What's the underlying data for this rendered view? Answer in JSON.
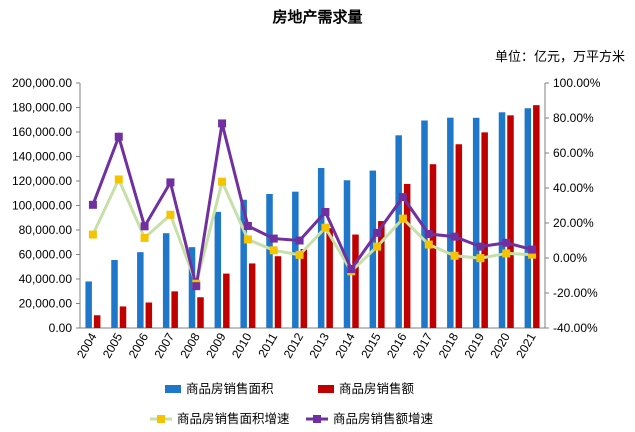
{
  "chart_data": {
    "type": "bar",
    "title": "房地产需求量",
    "unit_note": "单位：亿元，万平方米",
    "categories": [
      "2004",
      "2005",
      "2006",
      "2007",
      "2008",
      "2009",
      "2010",
      "2011",
      "2012",
      "2013",
      "2014",
      "2015",
      "2016",
      "2017",
      "2018",
      "2019",
      "2020",
      "2021"
    ],
    "bar_series": [
      {
        "name": "商品房销售面积",
        "color": "#1f77c9",
        "values": [
          38000,
          55500,
          61900,
          77400,
          66000,
          94800,
          104700,
          109400,
          111300,
          130600,
          120600,
          128500,
          157300,
          169400,
          171700,
          171600,
          176100,
          179400
        ]
      },
      {
        "name": "商品房销售额",
        "color": "#c00000",
        "values": [
          10400,
          17600,
          20800,
          29900,
          25100,
          44400,
          52700,
          58600,
          64500,
          81400,
          76300,
          87300,
          117600,
          133700,
          150000,
          159700,
          173600,
          181900
        ]
      }
    ],
    "line_series": [
      {
        "name": "商品房销售面积增速",
        "color": "#c6e0a8",
        "marker_color": "#f5c400",
        "values": [
          13.4,
          44.9,
          11.5,
          24.7,
          -14.7,
          43.6,
          10.6,
          4.4,
          1.8,
          17.3,
          -7.6,
          6.5,
          22.5,
          7.7,
          1.3,
          -0.1,
          2.6,
          1.9
        ]
      },
      {
        "name": "商品房销售额增速",
        "color": "#7030a0",
        "marker_color": "#7030a0",
        "values": [
          30.4,
          69.3,
          18.1,
          43.2,
          -16.1,
          76.9,
          18.3,
          11.1,
          10.0,
          26.3,
          -6.3,
          14.4,
          34.8,
          13.7,
          12.2,
          6.5,
          8.7,
          4.8
        ]
      }
    ],
    "y_left": {
      "min": 0,
      "max": 200000,
      "ticks": [
        "0.00",
        "20,000.00",
        "40,000.00",
        "60,000.00",
        "80,000.00",
        "100,000.00",
        "120,000.00",
        "140,000.00",
        "160,000.00",
        "180,000.00",
        "200,000.00"
      ]
    },
    "y_right": {
      "min": -40,
      "max": 100,
      "ticks": [
        "-40.00%",
        "-20.00%",
        "0.00%",
        "20.00%",
        "40.00%",
        "60.00%",
        "80.00%",
        "100.00%"
      ]
    },
    "grid": false,
    "legend_position": "bottom"
  }
}
